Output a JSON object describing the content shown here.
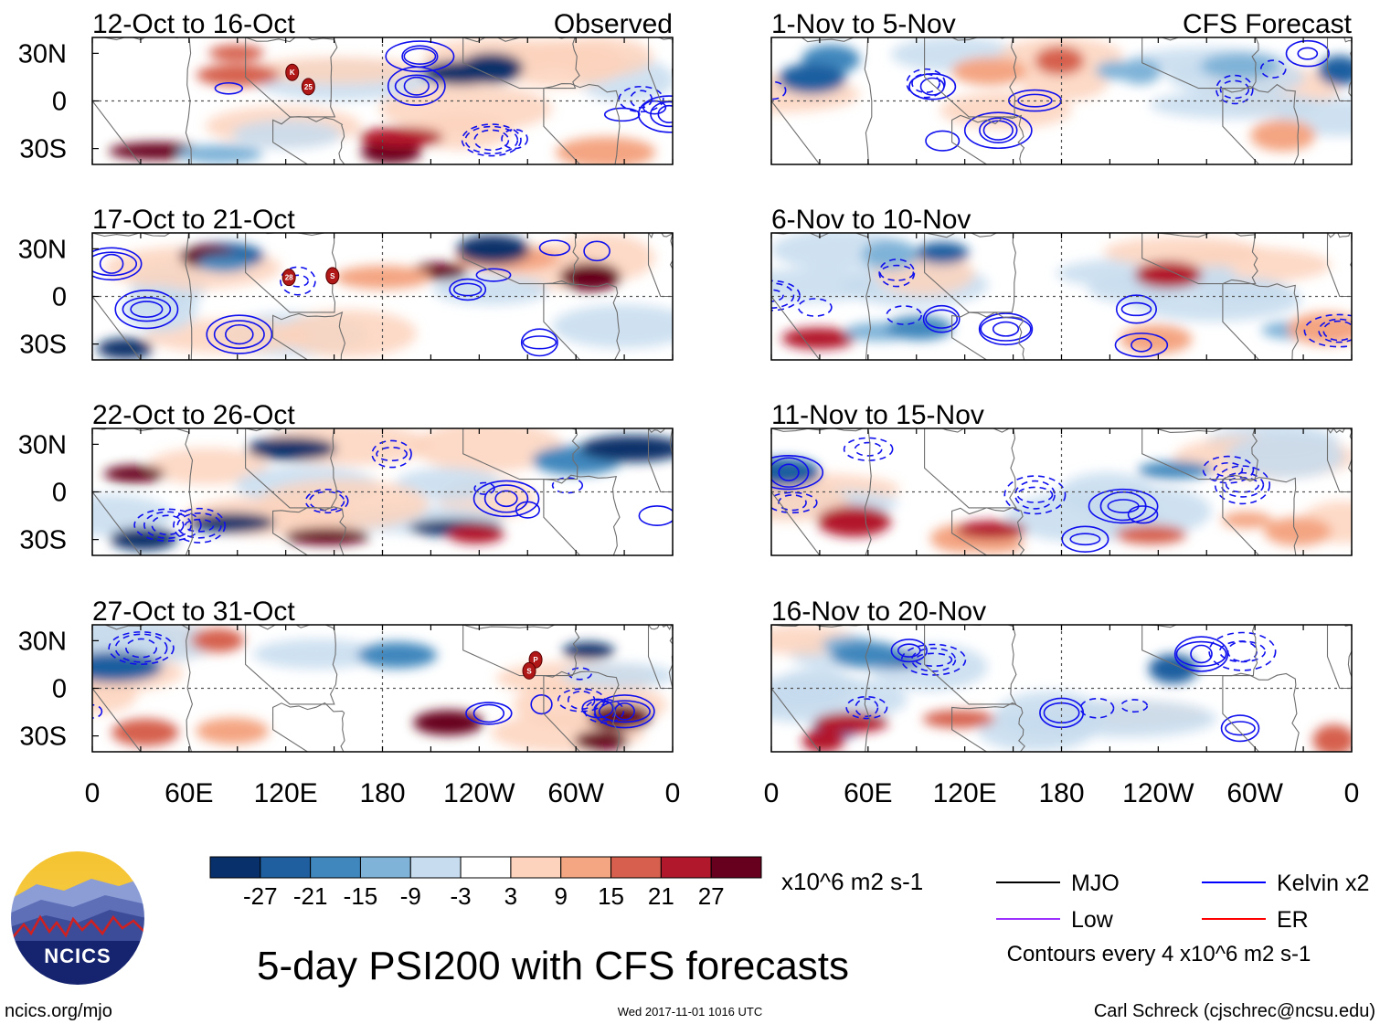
{
  "chart_data": {
    "type": "heatmap",
    "title": "5-day PSI200 with CFS forecasts",
    "variable": "PSI200",
    "units": "x10^6 m2 s-1",
    "contour_note": "Contours every 4 x10^6 m2 s-1",
    "x_ticks": [
      "0",
      "60E",
      "120E",
      "180",
      "120W",
      "60W",
      "0"
    ],
    "y_ticks": [
      "30N",
      "0",
      "30S"
    ],
    "xlim": [
      0,
      360
    ],
    "ylim": [
      -40,
      40
    ],
    "columns": [
      {
        "header": "Observed",
        "panels": [
          "12-Oct to 16-Oct",
          "17-Oct to 21-Oct",
          "22-Oct to 26-Oct",
          "27-Oct to 31-Oct"
        ]
      },
      {
        "header": "CFS Forecast",
        "panels": [
          "1-Nov to 5-Nov",
          "6-Nov to 10-Nov",
          "11-Nov to 15-Nov",
          "16-Nov to 20-Nov"
        ]
      }
    ],
    "colorbar": {
      "labels": [
        "-27",
        "-21",
        "-15",
        "-9",
        "-3",
        "3",
        "9",
        "15",
        "21",
        "27"
      ],
      "colors": [
        "#08306b",
        "#1f5fa0",
        "#3f87bd",
        "#7fb3d8",
        "#c7dcef",
        "#ffffff",
        "#fdd3bd",
        "#f4a582",
        "#d6604d",
        "#b2182b",
        "#67001f"
      ]
    },
    "legend": [
      {
        "label": "MJO",
        "color": "#000000"
      },
      {
        "label": "Kelvin x2",
        "color": "#0000ff"
      },
      {
        "label": "Low",
        "color": "#9b30ff"
      },
      {
        "label": "ER",
        "color": "#ff0000"
      }
    ],
    "storm_markers": [
      {
        "panel": 0,
        "lon": 124,
        "lat": 18,
        "label": "K"
      },
      {
        "panel": 0,
        "lon": 134,
        "lat": 9,
        "label": "25"
      },
      {
        "panel": 1,
        "lon": 122,
        "lat": 12,
        "label": "28"
      },
      {
        "panel": 1,
        "lon": 149,
        "lat": 13,
        "label": "S"
      },
      {
        "panel": 3,
        "lon": 275,
        "lat": 18,
        "label": "P"
      },
      {
        "panel": 3,
        "lon": 271,
        "lat": 11,
        "label": "S"
      }
    ]
  },
  "logo": {
    "text": "NCICS"
  },
  "footer": {
    "site": "ncics.org/mjo",
    "timestamp": "Wed 2017-11-01 1016 UTC",
    "credit": "Carl Schreck (cjschrec@ncsu.edu)"
  }
}
